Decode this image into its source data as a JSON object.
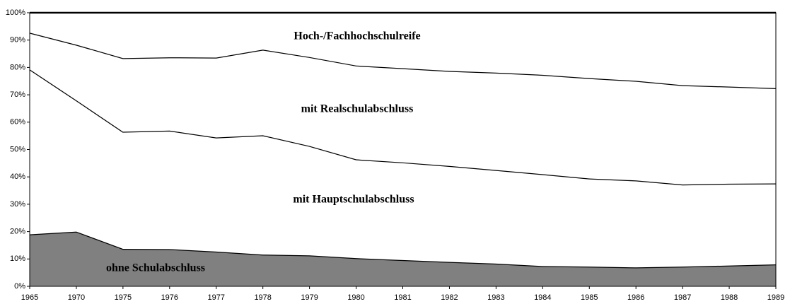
{
  "chart_data": {
    "type": "area",
    "categories": [
      "1965",
      "1970",
      "1975",
      "1976",
      "1977",
      "1978",
      "1979",
      "1980",
      "1981",
      "1982",
      "1983",
      "1984",
      "1985",
      "1986",
      "1987",
      "1988",
      "1989"
    ],
    "series": [
      {
        "name": "ohne Schulabschluss",
        "color": "#808080",
        "values": [
          19,
          20,
          13.7,
          13.6,
          12.7,
          11.6,
          11.3,
          10.3,
          9.6,
          8.9,
          8.3,
          7.4,
          7.2,
          6.9,
          7.2,
          7.6,
          8.0
        ]
      },
      {
        "name": "mit Hauptschulabschluss",
        "color": "#ffffff",
        "values": [
          60.3,
          48,
          42.8,
          43.3,
          41.7,
          43.6,
          40,
          36.1,
          35.7,
          35.1,
          34.2,
          33.6,
          32.2,
          31.8,
          30,
          29.9,
          29.6
        ]
      },
      {
        "name": "mit Realschulabschluss",
        "color": "#ffffff",
        "values": [
          13.4,
          20.3,
          26.9,
          26.8,
          29.2,
          31.3,
          32.5,
          34.3,
          34.4,
          34.7,
          35.6,
          36.3,
          36.7,
          36.4,
          36.3,
          35.5,
          34.8
        ]
      },
      {
        "name": "Hoch-/Fachhochschulreife",
        "color": "#ffffff",
        "values": [
          7.3,
          11.7,
          16.6,
          16.3,
          16.4,
          13.5,
          16.2,
          19.3,
          20.3,
          21.3,
          21.9,
          22.7,
          23.9,
          24.9,
          26.5,
          27,
          27.6
        ]
      }
    ],
    "ylim": [
      0,
      100
    ],
    "yticks": [
      {
        "value": 0,
        "label": "0%"
      },
      {
        "value": 10,
        "label": "10%"
      },
      {
        "value": 20,
        "label": "20%"
      },
      {
        "value": 30,
        "label": "30%"
      },
      {
        "value": 40,
        "label": "40%"
      },
      {
        "value": 50,
        "label": "50%"
      },
      {
        "value": 60,
        "label": "60%"
      },
      {
        "value": 70,
        "label": "70%"
      },
      {
        "value": 80,
        "label": "80%"
      },
      {
        "value": 90,
        "label": "90%"
      },
      {
        "value": 100,
        "label": "100%"
      }
    ],
    "stacked": true,
    "grid": false
  }
}
